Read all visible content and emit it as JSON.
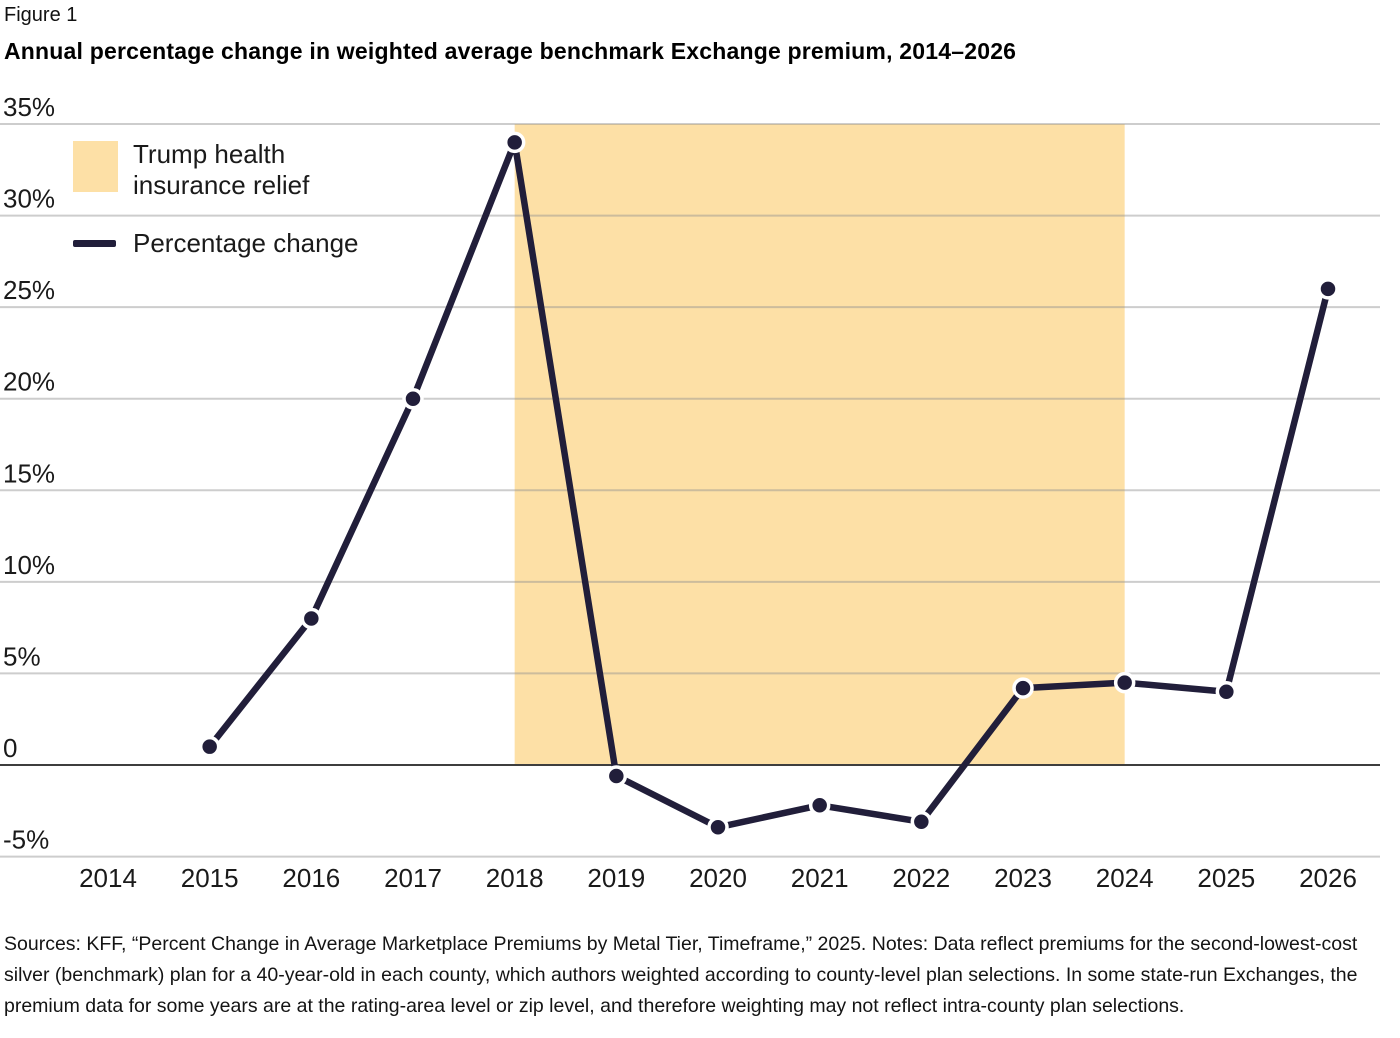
{
  "figure_label": "Figure 1",
  "title": "Annual percentage change in weighted average benchmark Exchange premium, 2014–2026",
  "chart_data": {
    "type": "line",
    "title": "Annual percentage change in weighted average benchmark Exchange premium, 2014–2026",
    "x": [
      2015,
      2016,
      2017,
      2018,
      2019,
      2020,
      2021,
      2022,
      2023,
      2024,
      2025,
      2026
    ],
    "series": [
      {
        "name": "Percentage change",
        "values": [
          1,
          8,
          20,
          34,
          -0.6,
          -3.4,
          -2.2,
          -3.1,
          4.2,
          4.5,
          4,
          26
        ]
      }
    ],
    "x_ticks": [
      2014,
      2015,
      2016,
      2017,
      2018,
      2019,
      2020,
      2021,
      2022,
      2023,
      2024,
      2025,
      2026
    ],
    "y_ticks": [
      {
        "label": "35%",
        "value": 35
      },
      {
        "label": "30%",
        "value": 30
      },
      {
        "label": "25%",
        "value": 25
      },
      {
        "label": "20%",
        "value": 20
      },
      {
        "label": "15%",
        "value": 15
      },
      {
        "label": "10%",
        "value": 10
      },
      {
        "label": "5%",
        "value": 5
      },
      {
        "label": "0",
        "value": 0
      },
      {
        "label": "-5%",
        "value": -5
      }
    ],
    "ylim": [
      -6.5,
      36
    ],
    "xlim": [
      2014,
      2026
    ],
    "grid": true,
    "legend_position": "top-left-inside",
    "shaded_region": {
      "label": "Trump health insurance relief",
      "x_start": 2018,
      "x_end": 2024,
      "y_top": 35,
      "y_bottom": 0,
      "color": "#fde0a6"
    },
    "colors": {
      "line": "#211e3a",
      "point_ring": "#ffffff",
      "gridline": "#909090",
      "zero_line": "#3e3e3e",
      "tick_text": "#1a1a1a"
    }
  },
  "legend": {
    "items": [
      {
        "type": "area",
        "color": "#fde0a6",
        "line1": "Trump health",
        "line2": "insurance relief"
      },
      {
        "type": "line",
        "color": "#211e3a",
        "line1": "Percentage change"
      }
    ]
  },
  "notes": "Sources: KFF, “Percent Change in Average Marketplace Premiums by Metal Tier, Timeframe,” 2025. Notes: Data reflect premiums for the second-lowest-cost silver (benchmark) plan for a 40-year-old in each county, which authors weighted according to county-level plan selections. In some state-run Exchanges, the premium data for some years are at the rating-area level or zip level, and therefore weighting may not reflect intra-county plan selections."
}
